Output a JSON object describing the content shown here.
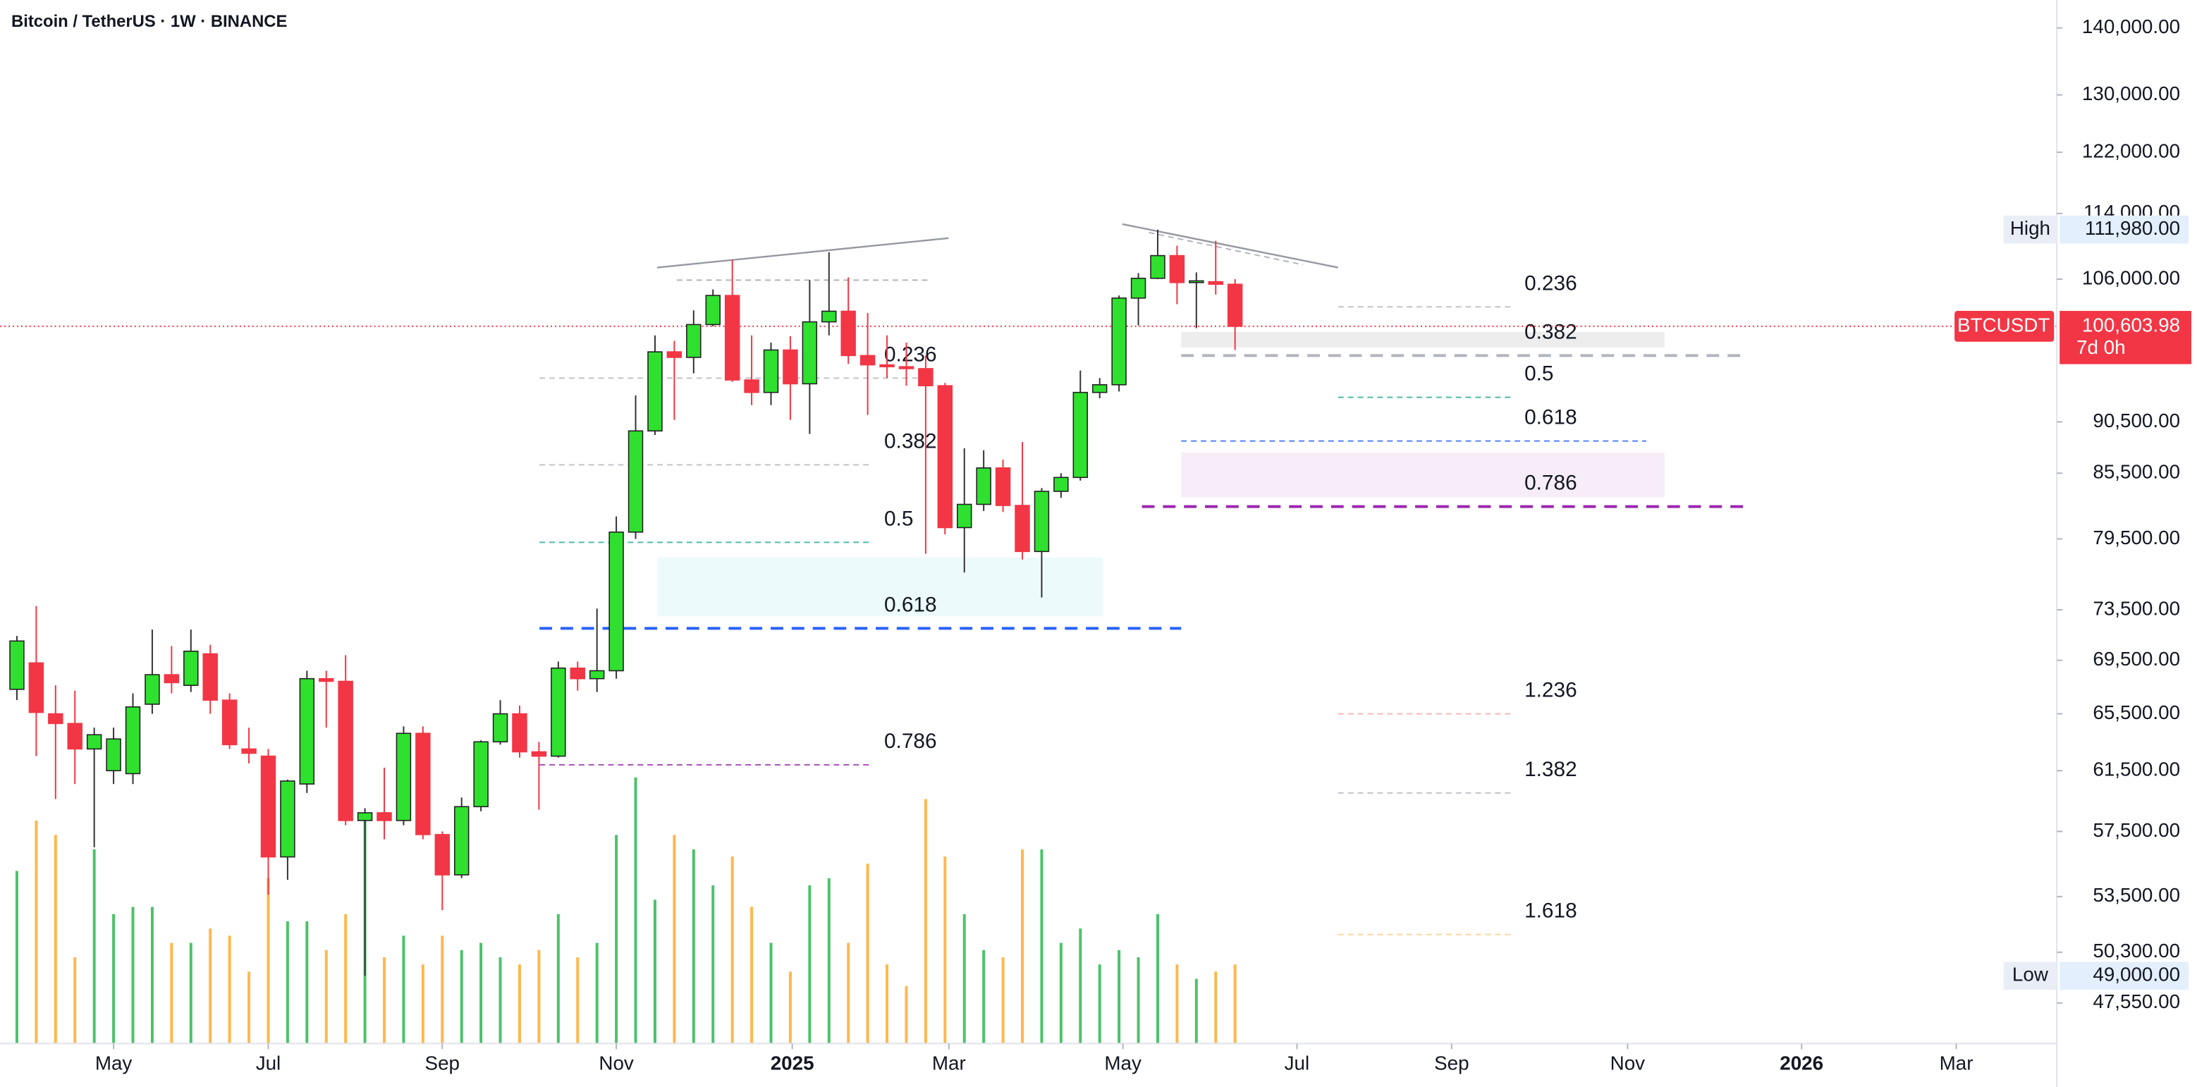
{
  "chart_data": {
    "type": "candlestick",
    "title": "Bitcoin / TetherUS · 1W · BINANCE",
    "x": [
      0,
      1,
      2,
      3,
      4,
      5,
      6,
      7,
      8,
      9,
      10,
      11,
      12,
      13,
      14,
      15,
      16,
      17,
      18,
      19,
      20,
      21,
      22,
      23,
      24,
      25,
      26,
      27,
      28,
      29,
      30,
      31,
      32,
      33,
      34,
      35,
      36,
      37,
      38,
      39,
      40,
      41,
      42,
      43,
      44,
      45,
      46,
      47,
      48,
      49,
      50,
      51,
      52,
      53,
      54,
      55,
      56,
      57,
      58,
      59,
      60,
      61,
      62,
      63
    ],
    "open": [
      67300,
      69300,
      65500,
      64800,
      63000,
      61500,
      61300,
      66200,
      68400,
      67600,
      70000,
      66500,
      63000,
      62500,
      55900,
      60600,
      68100,
      67900,
      58200,
      58700,
      58200,
      64100,
      57300,
      54800,
      59100,
      63500,
      65500,
      62800,
      62500,
      68900,
      68100,
      68700,
      80100,
      89600,
      97800,
      97200,
      100800,
      104100,
      94800,
      93500,
      98000,
      94400,
      101100,
      102300,
      97400,
      96400,
      96200,
      96000,
      94200,
      80500,
      82600,
      86000,
      82500,
      78400,
      83800,
      85100,
      93500,
      94300,
      103800,
      106100,
      108800,
      105600,
      105700,
      105400
    ],
    "high": [
      71400,
      73800,
      67600,
      67200,
      64500,
      64500,
      67000,
      71900,
      70600,
      71900,
      70700,
      67000,
      64500,
      63000,
      60900,
      68700,
      68700,
      69900,
      59000,
      61700,
      64600,
      64600,
      57500,
      59700,
      63600,
      66500,
      66100,
      63500,
      69400,
      69400,
      73600,
      81500,
      93200,
      99600,
      99000,
      102400,
      104800,
      108300,
      99600,
      98800,
      99500,
      105900,
      109200,
      106200,
      102100,
      99600,
      98800,
      97400,
      94500,
      87900,
      87700,
      86800,
      88500,
      84100,
      85500,
      95800,
      95000,
      104100,
      106700,
      111980,
      110000,
      106800,
      110600,
      106000
    ],
    "low": [
      66500,
      62500,
      59600,
      60600,
      56500,
      60600,
      60600,
      65500,
      67000,
      67100,
      65500,
      63000,
      62000,
      53600,
      54500,
      60000,
      64500,
      57900,
      49000,
      57000,
      57900,
      57000,
      52700,
      54600,
      58800,
      63300,
      62400,
      58900,
      62400,
      67200,
      67100,
      68100,
      79500,
      89200,
      90700,
      95500,
      100600,
      94600,
      92200,
      92200,
      90700,
      89300,
      99600,
      96500,
      91200,
      95000,
      94200,
      78200,
      79900,
      76600,
      82000,
      81900,
      77700,
      74500,
      83200,
      84800,
      92900,
      93600,
      100700,
      106000,
      103100,
      100400,
      104200,
      98000
    ],
    "close": [
      71000,
      65600,
      64800,
      63000,
      64000,
      63700,
      66000,
      68400,
      67800,
      70200,
      66500,
      63300,
      62700,
      55900,
      60800,
      68100,
      67900,
      58200,
      58700,
      58200,
      64100,
      57300,
      54800,
      59100,
      63500,
      65500,
      62800,
      62500,
      68900,
      68100,
      68700,
      80100,
      89600,
      97800,
      97200,
      100800,
      104100,
      94800,
      93500,
      98000,
      94400,
      101100,
      102300,
      97400,
      96400,
      96200,
      96000,
      94200,
      80500,
      82600,
      86000,
      82500,
      78400,
      83800,
      85100,
      93500,
      94300,
      103800,
      106100,
      108800,
      105600,
      105800,
      105400,
      100603.98
    ],
    "volume": [
      120,
      155,
      145,
      60,
      135,
      90,
      95,
      95,
      70,
      70,
      80,
      75,
      50,
      115,
      85,
      85,
      65,
      90,
      155,
      60,
      75,
      55,
      75,
      65,
      70,
      60,
      55,
      65,
      90,
      60,
      70,
      145,
      185,
      100,
      145,
      135,
      110,
      130,
      95,
      70,
      50,
      110,
      115,
      70,
      125,
      55,
      40,
      170,
      130,
      90,
      65,
      60,
      135,
      135,
      70,
      80,
      55,
      65,
      60,
      90,
      55,
      45,
      50,
      55
    ],
    "up_color": "#2fe02f",
    "down_color": "#f23645",
    "volume_up_color": "#4cc26a",
    "volume_down_color": "#ffb74d",
    "xlim": [
      -0.87,
      105.5
    ],
    "xticks": [
      {
        "value": 5.0,
        "label": "May"
      },
      {
        "value": 13.0,
        "label": "Jul"
      },
      {
        "value": 22.0,
        "label": "Sep"
      },
      {
        "value": 31.0,
        "label": "Nov"
      },
      {
        "value": 40.1,
        "label": "2025"
      },
      {
        "value": 48.2,
        "label": "Mar"
      },
      {
        "value": 57.2,
        "label": "May"
      },
      {
        "value": 66.2,
        "label": "Jul"
      },
      {
        "value": 74.2,
        "label": "Sep"
      },
      {
        "value": 83.3,
        "label": "Nov"
      },
      {
        "value": 92.3,
        "label": "2026"
      },
      {
        "value": 100.3,
        "label": "Mar"
      }
    ],
    "ylim": [
      45460,
      144400
    ],
    "log_y": true,
    "grid": false,
    "yticks": [
      {
        "value": 140000,
        "label": "140,000.00"
      },
      {
        "value": 130000,
        "label": "130,000.00"
      },
      {
        "value": 122000,
        "label": "122,000.00"
      },
      {
        "value": 114000,
        "label": "114,000.00"
      },
      {
        "value": 106000,
        "label": "106,000.00"
      },
      {
        "value": 90500,
        "label": "90,500.00"
      },
      {
        "value": 85500,
        "label": "85,500.00"
      },
      {
        "value": 79500,
        "label": "79,500.00"
      },
      {
        "value": 73500,
        "label": "73,500.00"
      },
      {
        "value": 69500,
        "label": "69,500.00"
      },
      {
        "value": 65500,
        "label": "65,500.00"
      },
      {
        "value": 61500,
        "label": "61,500.00"
      },
      {
        "value": 57500,
        "label": "57,500.00"
      },
      {
        "value": 53500,
        "label": "53,500.00"
      },
      {
        "value": 50300,
        "label": "50,300.00"
      },
      {
        "value": 47550,
        "label": "47,550.00"
      }
    ],
    "high_marker": {
      "label": "High",
      "value": {
        "value": 111980,
        "label": "111,980.00"
      }
    },
    "low_marker": {
      "label": "Low",
      "value": {
        "value": 49000,
        "label": "49,000.00"
      }
    },
    "last_price": {
      "symbol": "BTCUSDT",
      "value": {
        "value": 100603.98,
        "label": "100,603.98"
      },
      "countdown": "7d 0h",
      "color": "#f23645"
    },
    "fib_groups": [
      {
        "levels": [
          {
            "label": "0.236",
            "price": 95000,
            "color": "#b2b5be"
          },
          {
            "label": "0.382",
            "price": 86300,
            "color": "#b2b5be"
          },
          {
            "label": "0.5",
            "price": 79200,
            "color": "#22ab94"
          },
          {
            "label": "0.618",
            "price": 72000,
            "color": "#2962ff"
          },
          {
            "label": "0.786",
            "price": 61900,
            "color": "#9c27b0"
          }
        ]
      },
      {
        "levels": [
          {
            "label": "0.236",
            "price": 102800,
            "color": "#b2b5be"
          },
          {
            "label": "0.382",
            "price": 97400,
            "color": "#b2b5be"
          },
          {
            "label": "0.5",
            "price": 93000,
            "color": "#22ab94"
          },
          {
            "label": "0.618",
            "price": 88600,
            "color": "#2962ff"
          },
          {
            "label": "0.786",
            "price": 82400,
            "color": "#9c27b0"
          },
          {
            "label": "1.236",
            "price": 65500,
            "color": "#f7a5a5"
          },
          {
            "label": "1.382",
            "price": 60000,
            "color": "#b2b5be"
          },
          {
            "label": "1.618",
            "price": 51300,
            "color": "#ffcc80"
          }
        ]
      }
    ]
  }
}
